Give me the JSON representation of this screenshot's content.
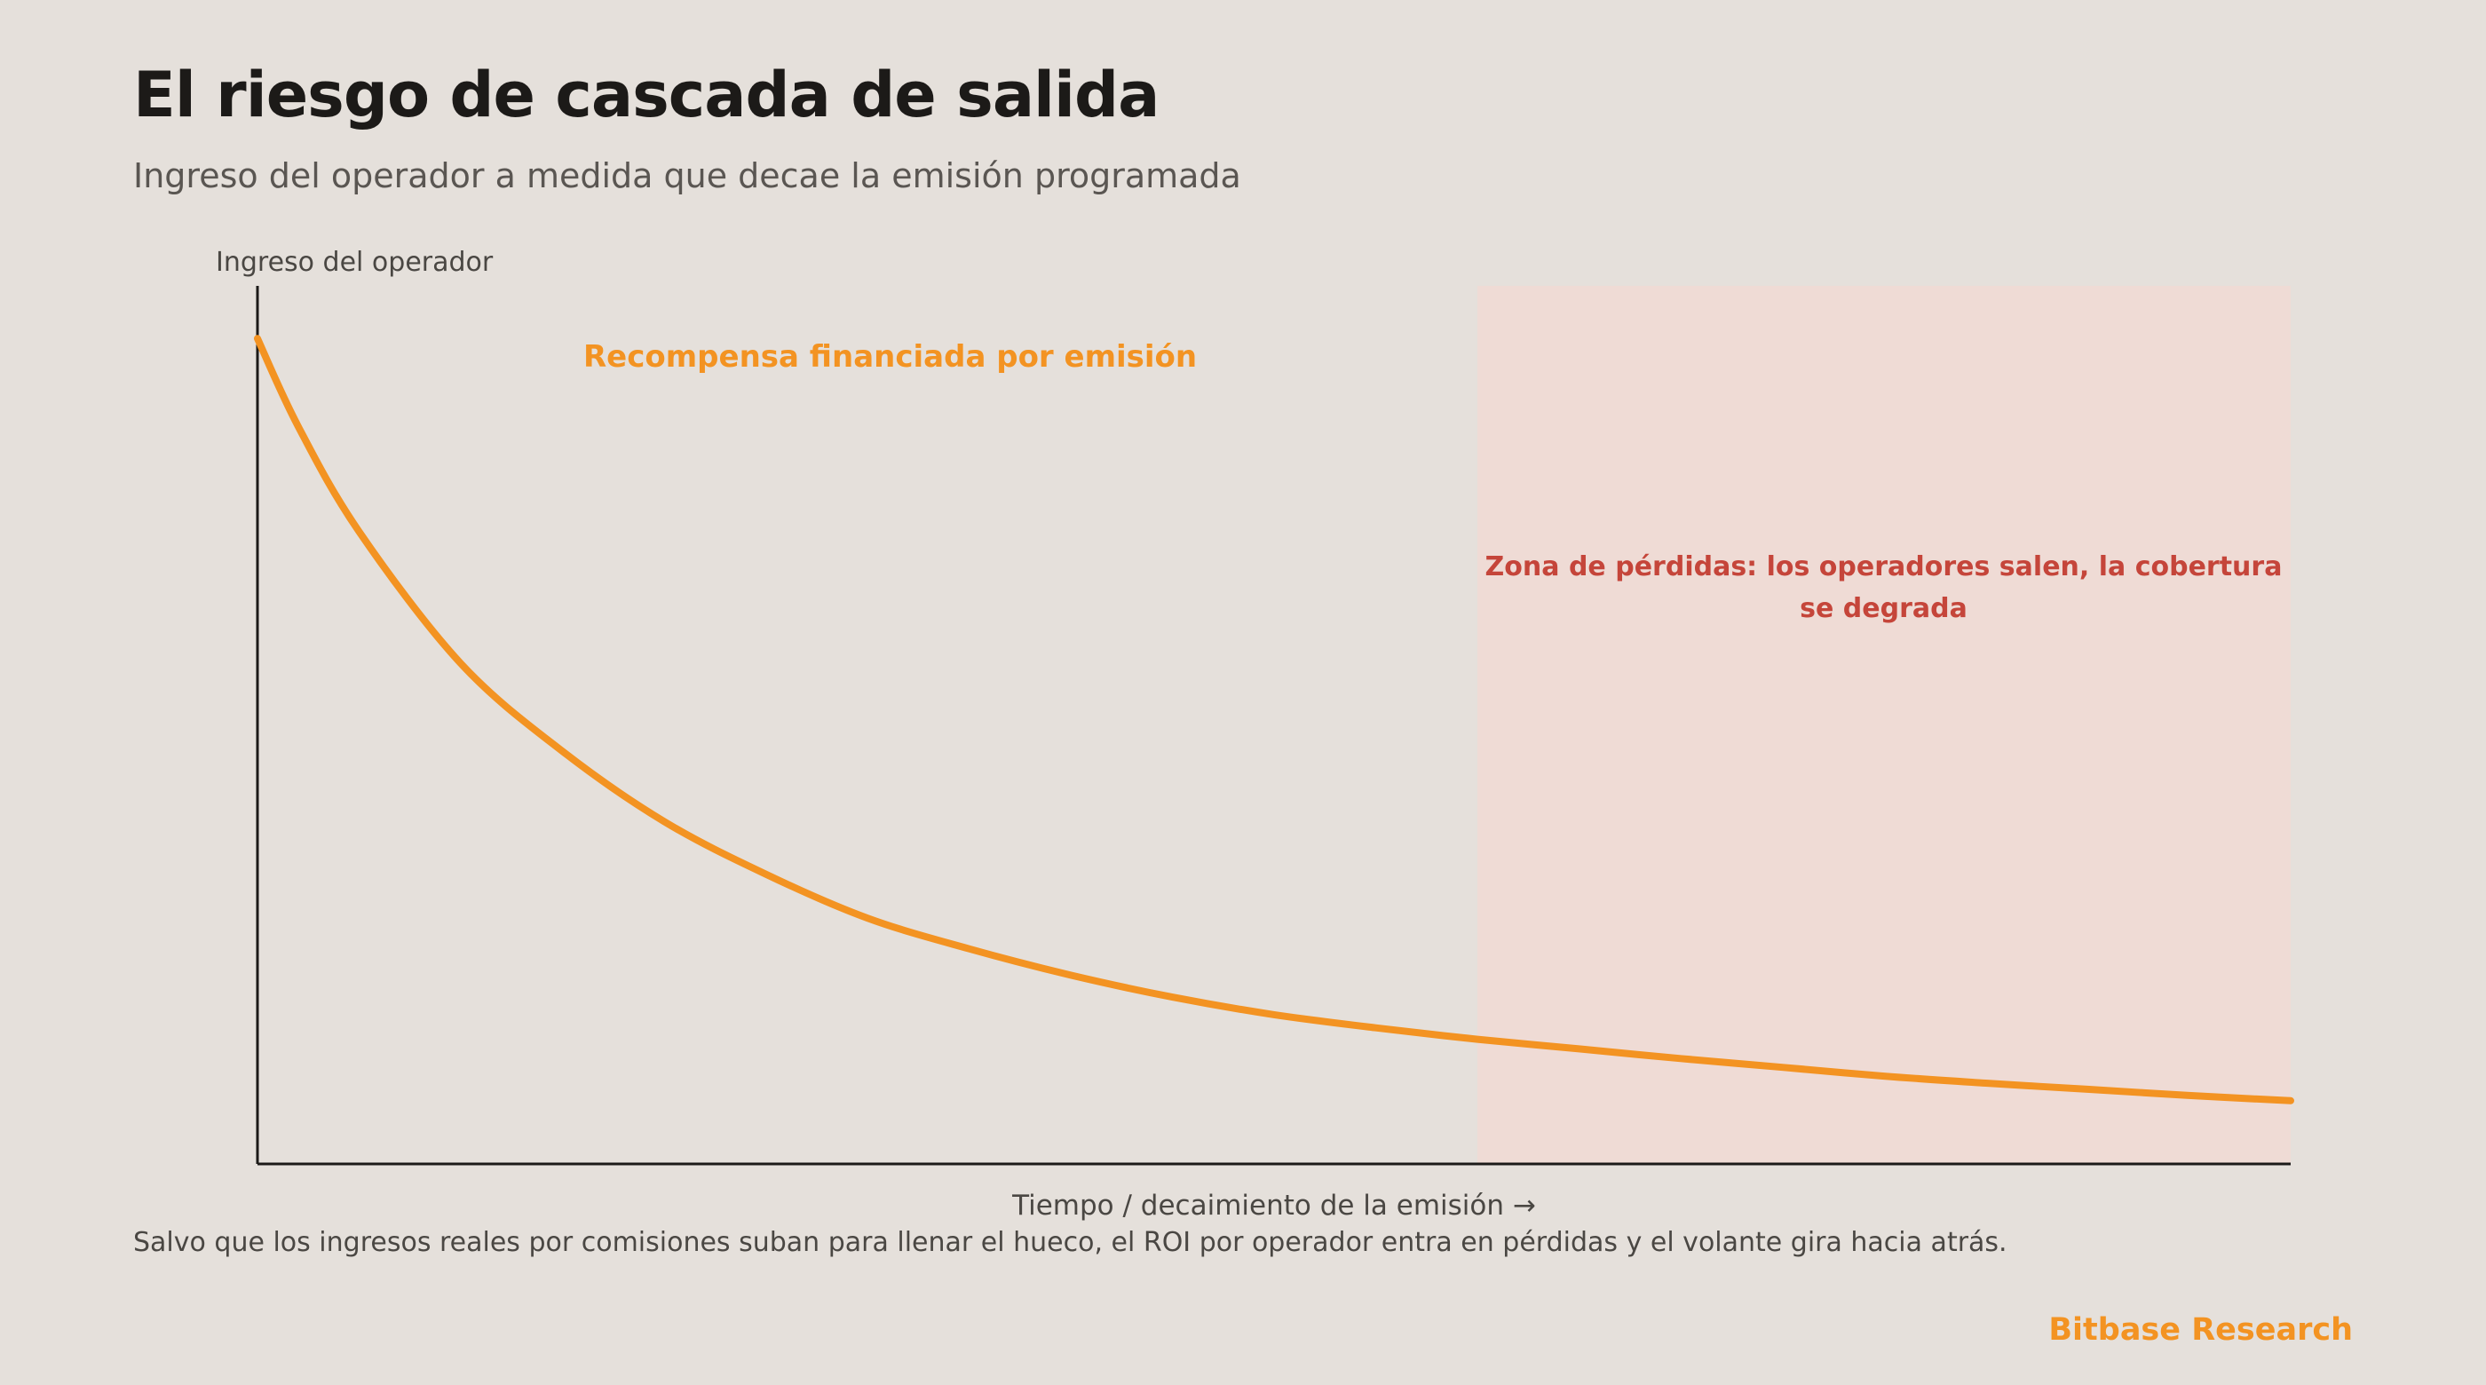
{
  "title": "El riesgo de cascada de salida",
  "subtitle": "Ingreso del operador a medida que decae la emisión programada",
  "caption": "Salvo que los ingresos reales por comisiones suban para llenar el hueco, el ROI por operador entra en pérdidas y el volante gira hacia atrás.",
  "brand": "Bitbase Research",
  "colors": {
    "background": "#e5e0db",
    "curve": "#f39322",
    "loss_zone_fill": "#efdbd5",
    "loss_text": "#c5453a",
    "axis": "#1c1a18"
  },
  "chart_data": {
    "type": "line",
    "ylabel": "Ingreso del operador",
    "xlabel": "Tiempo / decaimiento de la emisión →",
    "xlim": [
      0,
      1
    ],
    "ylim": [
      0,
      1
    ],
    "ticks": "none",
    "grid": false,
    "series": [
      {
        "name": "Recompensa financiada por emisión",
        "x": [
          0,
          0.02,
          0.05,
          0.1,
          0.15,
          0.2,
          0.25,
          0.3,
          0.35,
          0.4,
          0.45,
          0.5,
          0.55,
          0.6,
          0.65,
          0.7,
          0.75,
          0.8,
          0.85,
          0.9,
          0.95,
          1.0
        ],
        "y": [
          0.94,
          0.84,
          0.72,
          0.57,
          0.47,
          0.39,
          0.33,
          0.28,
          0.245,
          0.215,
          0.19,
          0.17,
          0.155,
          0.142,
          0.131,
          0.12,
          0.11,
          0.1,
          0.092,
          0.085,
          0.078,
          0.072
        ]
      }
    ],
    "regions": [
      {
        "x_start": 0.6,
        "x_end": 1.0,
        "label": "Zona de pérdidas: los operadores salen, la cobertura se degrada"
      }
    ]
  }
}
